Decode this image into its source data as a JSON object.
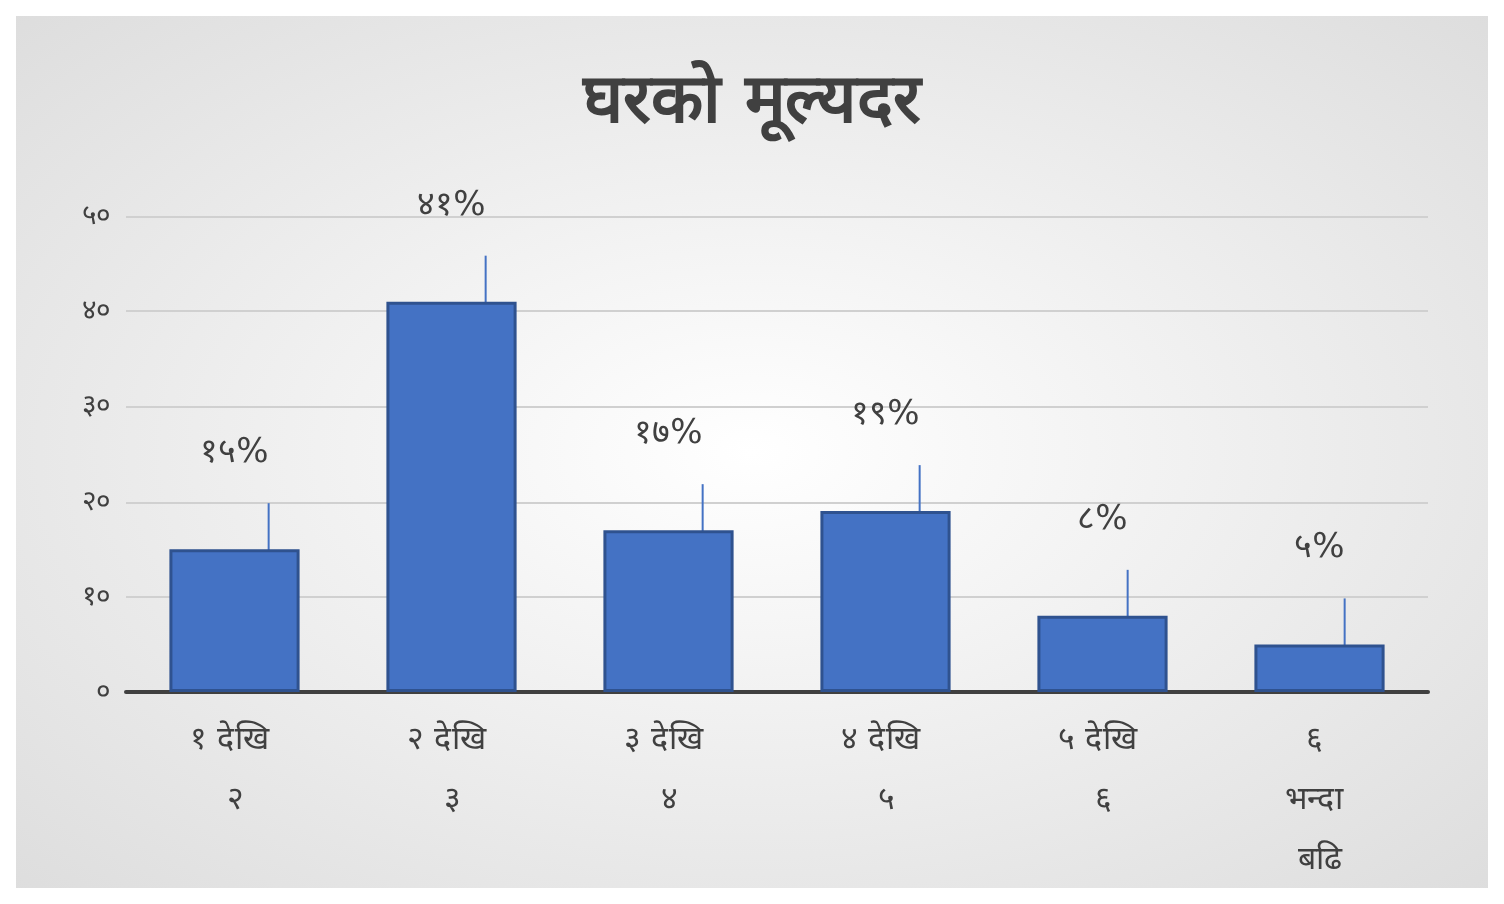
{
  "chart_data": {
    "type": "bar",
    "title": "घरको मूल्यदर",
    "categories": [
      "१ देखि २",
      "२ देखि ३",
      "३ देखि ४",
      "४ देखि ५",
      "५ देखि ६",
      "६ भन्दा बढि"
    ],
    "values": [
      15,
      41,
      17,
      19,
      8,
      5
    ],
    "value_labels": [
      "१५%",
      "४१%",
      "१७%",
      "१९%",
      "८%",
      "५%"
    ],
    "color": "#4472c4",
    "ylim": [
      0,
      50
    ],
    "yticks": [
      {
        "value": 0,
        "label": "०"
      },
      {
        "value": 10,
        "label": "१०"
      },
      {
        "value": 20,
        "label": "२०"
      },
      {
        "value": 30,
        "label": "३०"
      },
      {
        "value": 40,
        "label": "४०"
      },
      {
        "value": 50,
        "label": "५०"
      }
    ],
    "grid": "y"
  }
}
